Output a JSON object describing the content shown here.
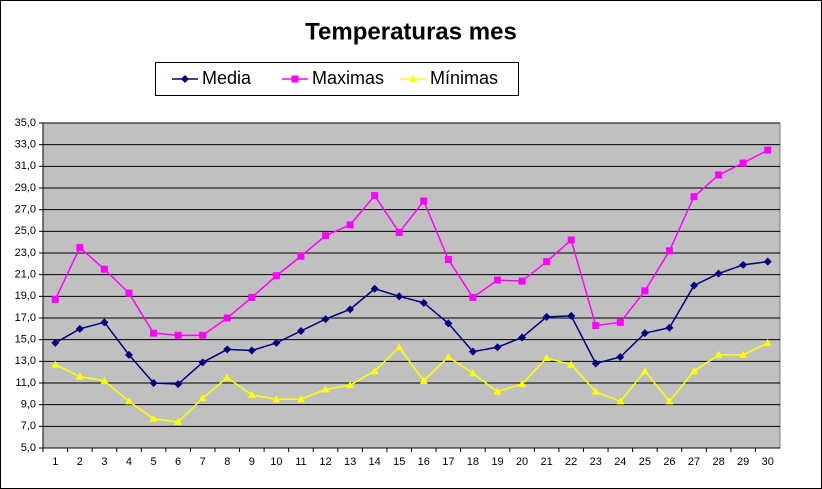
{
  "chart_data": {
    "type": "line",
    "title": "Temperaturas mes",
    "categories": [
      "1",
      "2",
      "3",
      "4",
      "5",
      "6",
      "7",
      "8",
      "9",
      "10",
      "11",
      "12",
      "13",
      "14",
      "15",
      "16",
      "17",
      "18",
      "19",
      "20",
      "21",
      "22",
      "23",
      "24",
      "25",
      "26",
      "27",
      "28",
      "29",
      "30"
    ],
    "series": [
      {
        "name": "Media",
        "color": "#000080",
        "marker": "diamond",
        "values": [
          14.7,
          16.0,
          16.6,
          13.6,
          11.0,
          10.9,
          12.9,
          14.1,
          14.0,
          14.7,
          15.8,
          16.9,
          17.8,
          19.7,
          19.0,
          18.4,
          16.5,
          13.9,
          14.3,
          15.2,
          17.1,
          17.2,
          12.8,
          13.4,
          15.6,
          16.1,
          20.0,
          21.1,
          21.9,
          22.2
        ]
      },
      {
        "name": "Maximas",
        "color": "#FF00FF",
        "marker": "square",
        "values": [
          18.7,
          23.5,
          21.5,
          19.3,
          15.6,
          15.4,
          15.4,
          17.0,
          18.9,
          20.9,
          22.7,
          24.6,
          25.6,
          28.3,
          24.9,
          27.8,
          22.4,
          18.9,
          20.5,
          20.4,
          22.2,
          24.2,
          16.3,
          16.6,
          19.5,
          23.2,
          28.2,
          30.2,
          31.3,
          32.5
        ]
      },
      {
        "name": "Mínimas",
        "color": "#FFFF00",
        "marker": "triangle",
        "values": [
          12.7,
          11.6,
          11.2,
          9.3,
          7.7,
          7.4,
          9.6,
          11.5,
          9.9,
          9.5,
          9.5,
          10.4,
          10.8,
          12.1,
          14.3,
          11.2,
          13.4,
          11.9,
          10.2,
          10.9,
          13.3,
          12.7,
          10.2,
          9.3,
          12.1,
          9.3,
          12.1,
          13.6,
          13.6,
          14.7
        ]
      }
    ],
    "ylim": [
      5,
      35
    ],
    "yticks": [
      {
        "value": 5,
        "label": "5,0"
      },
      {
        "value": 7,
        "label": "7,0"
      },
      {
        "value": 9,
        "label": "9,0"
      },
      {
        "value": 11,
        "label": "11,0"
      },
      {
        "value": 13,
        "label": "13,0"
      },
      {
        "value": 15,
        "label": "15,0"
      },
      {
        "value": 17,
        "label": "17,0"
      },
      {
        "value": 19,
        "label": "19,0"
      },
      {
        "value": 21,
        "label": "21,0"
      },
      {
        "value": 23,
        "label": "23,0"
      },
      {
        "value": 25,
        "label": "25,0"
      },
      {
        "value": 27,
        "label": "27,0"
      },
      {
        "value": 29,
        "label": "29,0"
      },
      {
        "value": 31,
        "label": "31,0"
      },
      {
        "value": 33,
        "label": "33,0"
      },
      {
        "value": 35,
        "label": "35,0"
      }
    ],
    "grid": true,
    "plot_background": "#C0C0C0",
    "legend": "top"
  }
}
